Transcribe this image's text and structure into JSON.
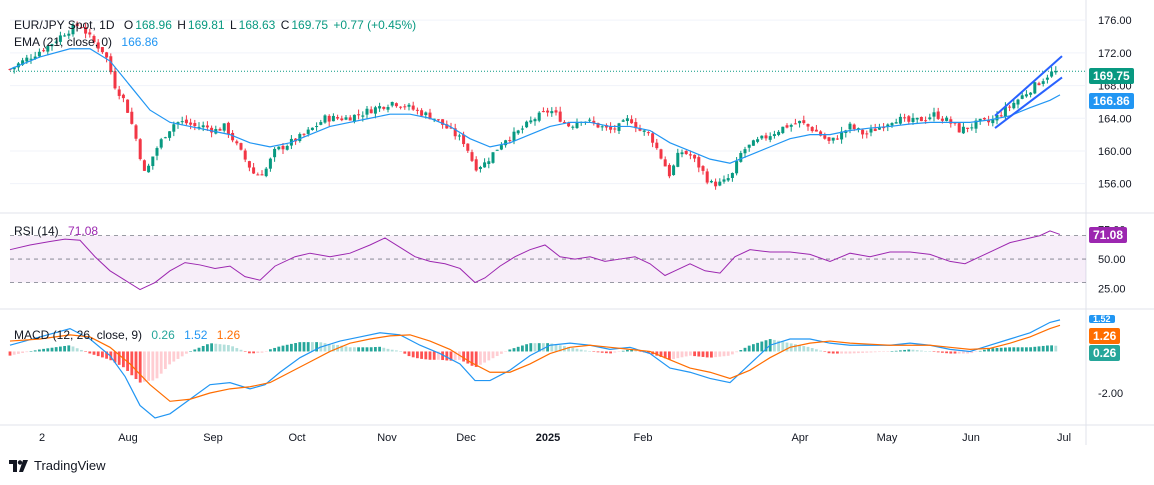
{
  "colors": {
    "up": "#089981",
    "down": "#f23645",
    "ema": "#2196f3",
    "rsi": "#9c27b0",
    "macd_line": "#2196f3",
    "signal_line": "#ff6d00",
    "channel": "#2962ff",
    "grid": "#f0f3fa",
    "axis_text": "#131722"
  },
  "legend": {
    "price": {
      "symbol": "EUR/JPY Spot, 1D",
      "o_label": "O",
      "o": "168.96",
      "h_label": "H",
      "h": "169.81",
      "l_label": "L",
      "l": "168.63",
      "c_label": "C",
      "c": "169.75",
      "change": "+0.77 (+0.45%)"
    },
    "ema": {
      "label": "EMA (21, close, 0)",
      "value": "166.86"
    },
    "rsi": {
      "label": "RSI (14)",
      "value": "71.08"
    },
    "macd": {
      "label": "MACD (12, 26, close, 9)",
      "v1": "0.26",
      "v2": "1.52",
      "v3": "1.26"
    }
  },
  "badges": {
    "price": {
      "text": "169.75",
      "color": "#089981"
    },
    "ema": {
      "text": "166.86",
      "color": "#2196f3"
    },
    "rsi": {
      "text": "71.08",
      "color": "#9c27b0"
    },
    "macd_line": {
      "text": "1.52",
      "color": "#2196f3"
    },
    "signal": {
      "text": "1.26",
      "color": "#ff6d00"
    },
    "hist": {
      "text": "0.26",
      "color": "#26a69a"
    }
  },
  "branding": {
    "name": "TradingView"
  },
  "chart_data": {
    "type": "candlestick",
    "price_axis": {
      "ticks": [
        "176.00",
        "172.00",
        "168.00",
        "164.00",
        "160.00",
        "156.00"
      ],
      "range": [
        154,
        177
      ]
    },
    "rsi_axis": {
      "ticks": [
        "75.00",
        "50.00",
        "25.00"
      ],
      "range": [
        10,
        85
      ],
      "band": [
        30,
        70
      ]
    },
    "macd_axis": {
      "ticks": [
        "-2.00"
      ],
      "range": [
        -3.3,
        1.9
      ]
    },
    "x_labels": [
      "2",
      "Aug",
      "Sep",
      "Oct",
      "Nov",
      "Dec",
      "2025",
      "Feb",
      "Apr",
      "May",
      "Jun",
      "Jul"
    ],
    "price_path": [
      [
        0,
        170
      ],
      [
        20,
        171.5
      ],
      [
        40,
        173
      ],
      [
        55,
        174.5
      ],
      [
        70,
        175.5
      ],
      [
        82,
        173.5
      ],
      [
        95,
        172
      ],
      [
        105,
        168
      ],
      [
        115,
        166
      ],
      [
        125,
        162
      ],
      [
        135,
        157
      ],
      [
        145,
        160
      ],
      [
        155,
        162
      ],
      [
        165,
        163.5
      ],
      [
        175,
        163.5
      ],
      [
        185,
        163
      ],
      [
        195,
        163
      ],
      [
        205,
        162.5
      ],
      [
        215,
        163
      ],
      [
        225,
        161
      ],
      [
        235,
        159
      ],
      [
        245,
        157
      ],
      [
        255,
        157.5
      ],
      [
        265,
        160
      ],
      [
        280,
        161
      ],
      [
        295,
        162
      ],
      [
        305,
        163
      ],
      [
        315,
        164
      ],
      [
        325,
        164
      ],
      [
        335,
        164
      ],
      [
        350,
        164.5
      ],
      [
        360,
        165
      ],
      [
        372,
        165.5
      ],
      [
        383,
        166
      ],
      [
        395,
        165.5
      ],
      [
        405,
        165
      ],
      [
        415,
        164.5
      ],
      [
        425,
        164
      ],
      [
        435,
        163
      ],
      [
        445,
        162
      ],
      [
        455,
        161
      ],
      [
        465,
        158
      ],
      [
        475,
        158.5
      ],
      [
        485,
        160
      ],
      [
        495,
        161.5
      ],
      [
        505,
        162
      ],
      [
        515,
        163
      ],
      [
        525,
        164
      ],
      [
        540,
        165
      ],
      [
        550,
        164
      ],
      [
        560,
        163
      ],
      [
        570,
        164
      ],
      [
        580,
        163.5
      ],
      [
        590,
        163
      ],
      [
        600,
        162.5
      ],
      [
        610,
        163
      ],
      [
        620,
        164
      ],
      [
        630,
        162.5
      ],
      [
        640,
        162
      ],
      [
        650,
        159.5
      ],
      [
        660,
        157
      ],
      [
        670,
        160
      ],
      [
        680,
        159.5
      ],
      [
        690,
        158
      ],
      [
        700,
        156
      ],
      [
        712,
        156
      ],
      [
        722,
        157
      ],
      [
        732,
        160
      ],
      [
        745,
        161
      ],
      [
        760,
        162
      ],
      [
        775,
        163
      ],
      [
        790,
        163.5
      ],
      [
        805,
        162.5
      ],
      [
        820,
        161
      ],
      [
        830,
        162
      ],
      [
        840,
        163
      ],
      [
        855,
        162
      ],
      [
        870,
        163
      ],
      [
        885,
        164
      ],
      [
        900,
        163.5
      ],
      [
        915,
        164
      ],
      [
        925,
        164.5
      ],
      [
        940,
        163.5
      ],
      [
        950,
        162.5
      ],
      [
        960,
        163
      ],
      [
        970,
        163.5
      ],
      [
        980,
        163.5
      ],
      [
        990,
        164.5
      ],
      [
        1000,
        165.5
      ],
      [
        1010,
        166.5
      ],
      [
        1020,
        167.5
      ],
      [
        1030,
        168.5
      ],
      [
        1040,
        169.5
      ],
      [
        1050,
        169.75
      ]
    ],
    "ema_path": [
      [
        0,
        170
      ],
      [
        30,
        171.5
      ],
      [
        60,
        172.5
      ],
      [
        80,
        172.5
      ],
      [
        100,
        171
      ],
      [
        120,
        168
      ],
      [
        140,
        165
      ],
      [
        160,
        163.5
      ],
      [
        180,
        163
      ],
      [
        200,
        162.5
      ],
      [
        220,
        162
      ],
      [
        240,
        161
      ],
      [
        260,
        160.5
      ],
      [
        280,
        161
      ],
      [
        300,
        162
      ],
      [
        320,
        163
      ],
      [
        340,
        163.5
      ],
      [
        360,
        164
      ],
      [
        380,
        164.5
      ],
      [
        400,
        164.5
      ],
      [
        420,
        164
      ],
      [
        440,
        163
      ],
      [
        460,
        161.5
      ],
      [
        480,
        160.5
      ],
      [
        500,
        161
      ],
      [
        520,
        162
      ],
      [
        540,
        163
      ],
      [
        560,
        163.5
      ],
      [
        580,
        163.5
      ],
      [
        600,
        163
      ],
      [
        620,
        163
      ],
      [
        640,
        162.5
      ],
      [
        660,
        161
      ],
      [
        680,
        160
      ],
      [
        700,
        159
      ],
      [
        720,
        158.5
      ],
      [
        740,
        159.5
      ],
      [
        760,
        160.5
      ],
      [
        780,
        161.5
      ],
      [
        800,
        162
      ],
      [
        820,
        162
      ],
      [
        840,
        162.5
      ],
      [
        860,
        162.8
      ],
      [
        880,
        163
      ],
      [
        900,
        163.3
      ],
      [
        920,
        163.5
      ],
      [
        940,
        163.5
      ],
      [
        960,
        163.5
      ],
      [
        980,
        163.8
      ],
      [
        1000,
        164.3
      ],
      [
        1020,
        165.3
      ],
      [
        1040,
        166.2
      ],
      [
        1050,
        166.86
      ]
    ],
    "channel_upper": [
      [
        985,
        164.3
      ],
      [
        1052,
        171.6
      ]
    ],
    "channel_lower": [
      [
        985,
        162.8
      ],
      [
        1052,
        169.0
      ]
    ],
    "rsi_path": [
      [
        0,
        58
      ],
      [
        20,
        62
      ],
      [
        40,
        65
      ],
      [
        55,
        67
      ],
      [
        70,
        66
      ],
      [
        85,
        52
      ],
      [
        100,
        40
      ],
      [
        115,
        32
      ],
      [
        130,
        24
      ],
      [
        145,
        30
      ],
      [
        160,
        40
      ],
      [
        175,
        47
      ],
      [
        190,
        45
      ],
      [
        205,
        42
      ],
      [
        220,
        44
      ],
      [
        235,
        35
      ],
      [
        250,
        32
      ],
      [
        265,
        44
      ],
      [
        285,
        52
      ],
      [
        300,
        55
      ],
      [
        320,
        52
      ],
      [
        340,
        55
      ],
      [
        360,
        62
      ],
      [
        375,
        68
      ],
      [
        390,
        60
      ],
      [
        405,
        52
      ],
      [
        420,
        48
      ],
      [
        435,
        46
      ],
      [
        450,
        42
      ],
      [
        465,
        30
      ],
      [
        475,
        34
      ],
      [
        490,
        44
      ],
      [
        505,
        52
      ],
      [
        520,
        58
      ],
      [
        535,
        62
      ],
      [
        550,
        52
      ],
      [
        565,
        50
      ],
      [
        580,
        52
      ],
      [
        595,
        48
      ],
      [
        610,
        50
      ],
      [
        625,
        52
      ],
      [
        640,
        46
      ],
      [
        655,
        36
      ],
      [
        665,
        40
      ],
      [
        680,
        46
      ],
      [
        695,
        40
      ],
      [
        710,
        38
      ],
      [
        725,
        52
      ],
      [
        740,
        58
      ],
      [
        760,
        56
      ],
      [
        780,
        56
      ],
      [
        800,
        54
      ],
      [
        820,
        48
      ],
      [
        840,
        55
      ],
      [
        860,
        52
      ],
      [
        880,
        56
      ],
      [
        900,
        56
      ],
      [
        920,
        54
      ],
      [
        940,
        48
      ],
      [
        955,
        46
      ],
      [
        970,
        52
      ],
      [
        985,
        58
      ],
      [
        1000,
        64
      ],
      [
        1015,
        67
      ],
      [
        1030,
        70
      ],
      [
        1040,
        74
      ],
      [
        1050,
        71
      ]
    ],
    "macd_path": [
      [
        0,
        0.3
      ],
      [
        30,
        0.7
      ],
      [
        60,
        1.1
      ],
      [
        80,
        0.6
      ],
      [
        100,
        -0.2
      ],
      [
        115,
        -1.2
      ],
      [
        130,
        -2.6
      ],
      [
        145,
        -3.2
      ],
      [
        160,
        -3.0
      ],
      [
        180,
        -2.3
      ],
      [
        200,
        -1.6
      ],
      [
        220,
        -1.5
      ],
      [
        240,
        -1.8
      ],
      [
        255,
        -1.6
      ],
      [
        270,
        -1.0
      ],
      [
        290,
        -0.3
      ],
      [
        310,
        0.2
      ],
      [
        330,
        0.5
      ],
      [
        350,
        0.7
      ],
      [
        370,
        0.9
      ],
      [
        390,
        0.8
      ],
      [
        410,
        0.3
      ],
      [
        430,
        -0.1
      ],
      [
        450,
        -0.6
      ],
      [
        465,
        -1.4
      ],
      [
        480,
        -1.4
      ],
      [
        500,
        -0.9
      ],
      [
        520,
        -0.2
      ],
      [
        540,
        0.3
      ],
      [
        560,
        0.4
      ],
      [
        580,
        0.3
      ],
      [
        600,
        0.1
      ],
      [
        620,
        0.2
      ],
      [
        640,
        -0.1
      ],
      [
        660,
        -0.8
      ],
      [
        680,
        -1.0
      ],
      [
        700,
        -1.3
      ],
      [
        720,
        -1.5
      ],
      [
        740,
        -0.6
      ],
      [
        760,
        0.3
      ],
      [
        780,
        0.6
      ],
      [
        800,
        0.6
      ],
      [
        820,
        0.4
      ],
      [
        840,
        0.3
      ],
      [
        860,
        0.3
      ],
      [
        880,
        0.3
      ],
      [
        900,
        0.4
      ],
      [
        920,
        0.3
      ],
      [
        940,
        0.1
      ],
      [
        960,
        0.0
      ],
      [
        980,
        0.3
      ],
      [
        1000,
        0.6
      ],
      [
        1020,
        0.9
      ],
      [
        1040,
        1.4
      ],
      [
        1050,
        1.52
      ]
    ],
    "signal_path": [
      [
        0,
        0.5
      ],
      [
        30,
        0.6
      ],
      [
        60,
        0.8
      ],
      [
        80,
        0.7
      ],
      [
        100,
        0.2
      ],
      [
        120,
        -0.6
      ],
      [
        140,
        -1.6
      ],
      [
        160,
        -2.4
      ],
      [
        180,
        -2.3
      ],
      [
        200,
        -2.0
      ],
      [
        220,
        -1.8
      ],
      [
        240,
        -1.7
      ],
      [
        260,
        -1.5
      ],
      [
        280,
        -1.0
      ],
      [
        300,
        -0.5
      ],
      [
        320,
        0.0
      ],
      [
        340,
        0.4
      ],
      [
        360,
        0.6
      ],
      [
        380,
        0.75
      ],
      [
        400,
        0.8
      ],
      [
        420,
        0.5
      ],
      [
        440,
        0.1
      ],
      [
        460,
        -0.5
      ],
      [
        480,
        -1.0
      ],
      [
        500,
        -1.0
      ],
      [
        520,
        -0.6
      ],
      [
        540,
        -0.1
      ],
      [
        560,
        0.2
      ],
      [
        580,
        0.3
      ],
      [
        600,
        0.2
      ],
      [
        620,
        0.1
      ],
      [
        640,
        0.0
      ],
      [
        660,
        -0.4
      ],
      [
        680,
        -0.8
      ],
      [
        700,
        -1.0
      ],
      [
        720,
        -1.3
      ],
      [
        740,
        -0.9
      ],
      [
        760,
        -0.3
      ],
      [
        780,
        0.2
      ],
      [
        800,
        0.4
      ],
      [
        820,
        0.5
      ],
      [
        840,
        0.4
      ],
      [
        860,
        0.35
      ],
      [
        880,
        0.3
      ],
      [
        900,
        0.3
      ],
      [
        920,
        0.3
      ],
      [
        940,
        0.2
      ],
      [
        960,
        0.1
      ],
      [
        980,
        0.15
      ],
      [
        1000,
        0.4
      ],
      [
        1020,
        0.7
      ],
      [
        1040,
        1.1
      ],
      [
        1050,
        1.26
      ]
    ]
  }
}
